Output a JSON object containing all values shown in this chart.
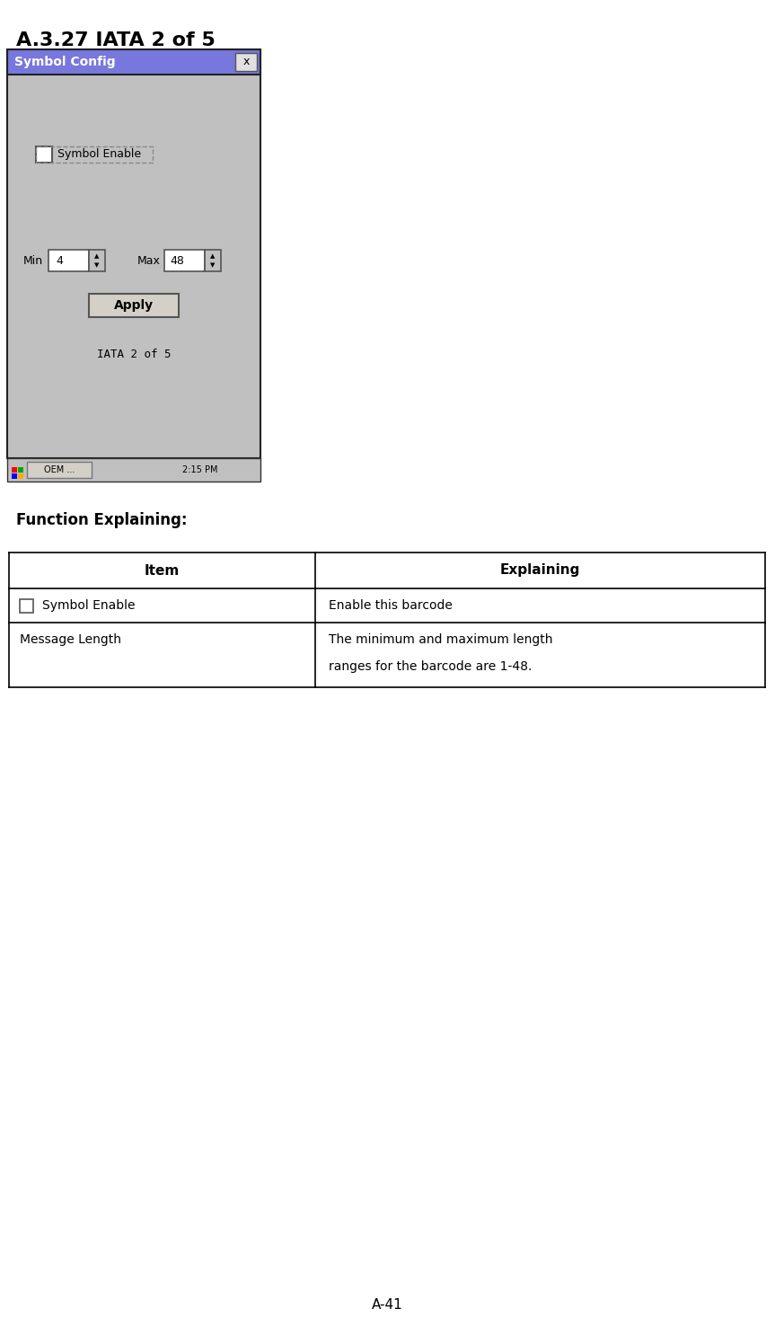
{
  "title": "A.3.27 IATA 2 of 5",
  "section_label": "Function Explaining:",
  "table_headers": [
    "Item",
    "Explaining"
  ],
  "row1_item": "Symbol Enable",
  "row1_explaining": "Enable this barcode",
  "row2_item": "Message Length",
  "row2_explaining_line1": "The minimum and maximum length",
  "row2_explaining_line2": "ranges for the barcode are 1-48.",
  "dialog_title": "Symbol Config",
  "dialog_bg": "#c0c0c0",
  "dialog_title_bg": "#7777dd",
  "dialog_title_fg": "#ffffff",
  "min_label": "Min",
  "min_value": "4",
  "max_label": "Max",
  "max_value": "48",
  "apply_label": "Apply",
  "dialog_footer": "IATA 2 of 5",
  "page_label": "A-41",
  "fig_bg": "#ffffff",
  "title_fontsize": 16,
  "section_fontsize": 12,
  "table_header_fontsize": 11,
  "table_cell_fontsize": 10
}
